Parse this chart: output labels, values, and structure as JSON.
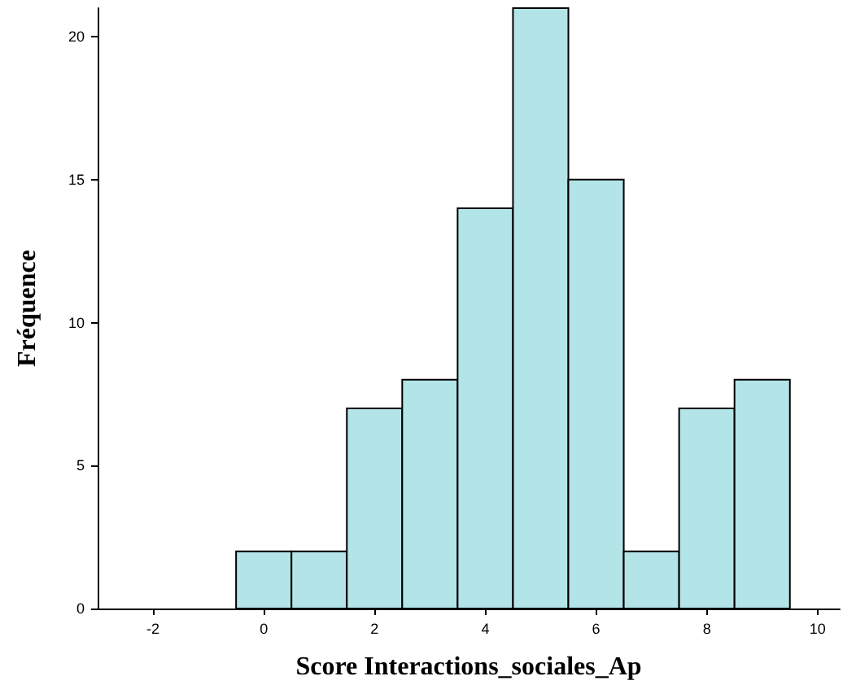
{
  "chart_data": {
    "type": "histogram",
    "xlabel": "Score Interactions_sociales_Ap",
    "ylabel": "Fréquence",
    "bins": [
      -0.5,
      0.5,
      1.5,
      2.5,
      3.5,
      4.5,
      5.5,
      6.5,
      7.5,
      8.5,
      9.5
    ],
    "values": [
      2,
      2,
      7,
      8,
      14,
      21,
      15,
      2,
      7,
      8
    ],
    "color": "#b3e5e8",
    "xlim": [
      -3,
      10.4
    ],
    "xticks": [
      -2,
      0,
      2,
      4,
      6,
      8,
      10
    ],
    "ylim": [
      0,
      21
    ],
    "yticks": [
      0,
      5,
      10,
      15,
      20
    ],
    "tick_labels": "xy"
  }
}
